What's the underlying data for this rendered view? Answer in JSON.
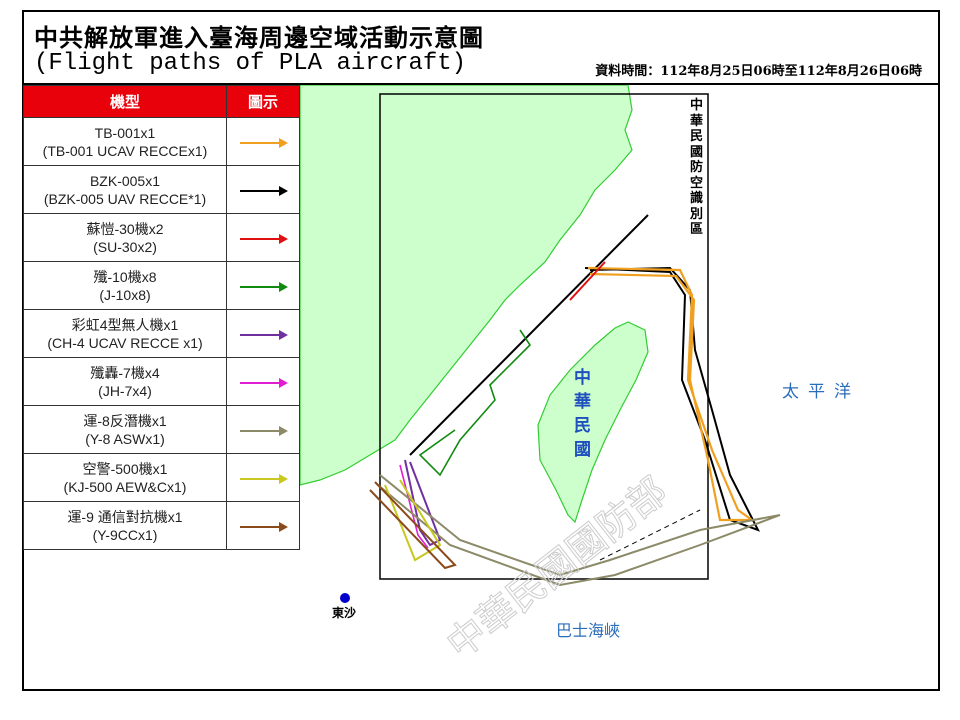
{
  "header": {
    "title": "中共解放軍進入臺海周邊空域活動示意圖",
    "subtitle": "(Flight paths of PLA aircraft)",
    "data_time": "資料時間：112年8月25日06時至112年8月26日06時"
  },
  "legend": {
    "col_type": "機型",
    "col_symbol": "圖示",
    "rows": [
      {
        "line1": "TB-001x1",
        "line2": "(TB-001 UCAV RECCEx1)",
        "color": "#f0a020"
      },
      {
        "line1": "BZK-005x1",
        "line2": "(BZK-005 UAV RECCE*1)",
        "color": "#000000"
      },
      {
        "line1": "蘇愷-30機x2",
        "line2": "(SU-30x2)",
        "color": "#e01010"
      },
      {
        "line1": "殲-10機x8",
        "line2": "(J-10x8)",
        "color": "#108a10"
      },
      {
        "line1": "彩虹4型無人機x1",
        "line2": "(CH-4 UCAV RECCE x1)",
        "color": "#7030a0"
      },
      {
        "line1": "殲轟-7機x4",
        "line2": "(JH-7x4)",
        "color": "#e020d0"
      },
      {
        "line1": "運-8反潛機x1",
        "line2": "(Y-8 ASWx1)",
        "color": "#8c8a68"
      },
      {
        "line1": "空警-500機x1",
        "line2": "(KJ-500 AEW&Cx1)",
        "color": "#c8c820"
      },
      {
        "line1": "運-9 通信對抗機x1",
        "line2": "(Y-9CCx1)",
        "color": "#8b4a1a"
      }
    ]
  },
  "map": {
    "adiz_label": "中華民國防空識別區",
    "taiwan_label": "中華民國",
    "pacific_label": "太平洋",
    "bashi_label": "巴士海峽",
    "dongsha_label": "東沙",
    "watermark": "中華民國國防部",
    "land_color": "#ccffcc",
    "coast_color": "#33cc33",
    "label_color": "#2a6ebb"
  }
}
